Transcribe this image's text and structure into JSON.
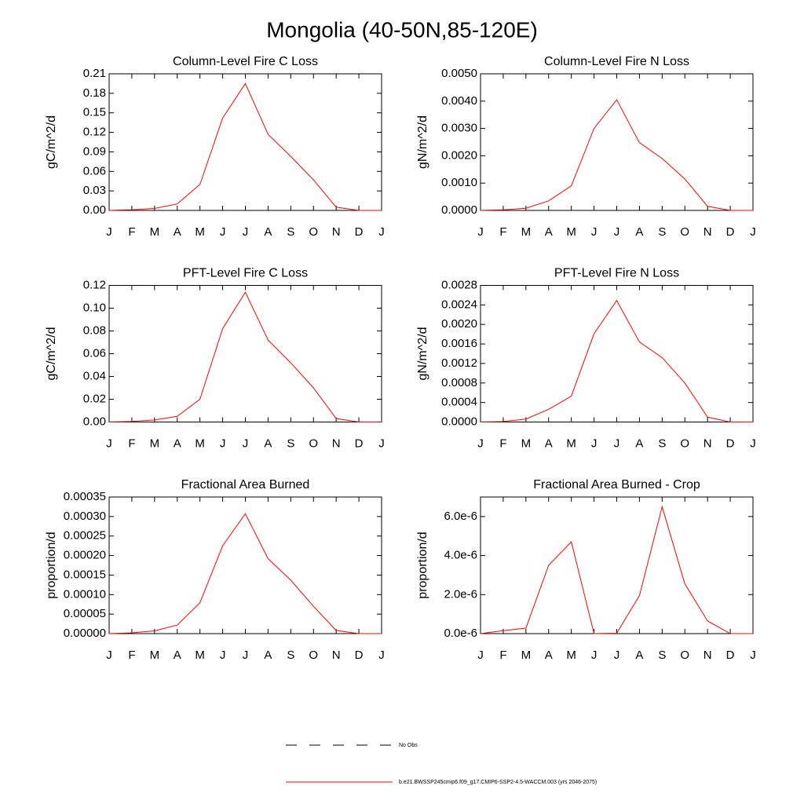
{
  "title": "Mongolia (40-50N,85-120E)",
  "legend": [
    {
      "name": "No Obs",
      "color": "#000000",
      "dash": true
    },
    {
      "name": "b.e21.BWSSP245cmip6.f09_g17.CMIP6-SSP2-4.5-WACCM.003 (yrs 2046-2075)",
      "color": "#ff0000",
      "dash": false
    }
  ],
  "chart_data": [
    {
      "type": "line",
      "title": "Column-Level Fire C Loss",
      "y_label": "gC/m^2/d",
      "categories": [
        "J",
        "F",
        "M",
        "A",
        "M",
        "J",
        "J",
        "A",
        "S",
        "O",
        "N",
        "D",
        "J"
      ],
      "values": [
        0,
        0.001,
        0.003,
        0.01,
        0.04,
        0.142,
        0.195,
        0.117,
        0.083,
        0.047,
        0.005,
        0,
        0
      ],
      "color": "#ff0000",
      "ylim": [
        0,
        0.21
      ],
      "yticks": [
        {
          "value": 0,
          "label": "0.00"
        },
        0.03,
        0.06,
        0.09,
        0.12,
        0.15,
        0.18,
        0.21
      ]
    },
    {
      "type": "line",
      "title": "Column-Level Fire N Loss",
      "y_label": "gN/m^2/d",
      "categories": [
        "J",
        "F",
        "M",
        "A",
        "M",
        "J",
        "J",
        "A",
        "S",
        "O",
        "N",
        "D",
        "J"
      ],
      "values": [
        0,
        2e-05,
        8e-05,
        0.00035,
        0.0009,
        0.003,
        0.00405,
        0.00248,
        0.0019,
        0.00115,
        0.00015,
        0,
        0
      ],
      "color": "#ff0000",
      "ylim": [
        0,
        0.005
      ],
      "yticks": [
        {
          "value": 0,
          "label": "0.0000"
        },
        {
          "value": 0.001,
          "label": "0.0010"
        },
        {
          "value": 0.002,
          "label": "0.0020"
        },
        {
          "value": 0.003,
          "label": "0.0030"
        },
        {
          "value": 0.004,
          "label": "0.0040"
        },
        {
          "value": 0.005,
          "label": "0.0050"
        }
      ]
    },
    {
      "type": "line",
      "title": "PFT-Level Fire C Loss",
      "y_label": "gC/m^2/d",
      "categories": [
        "J",
        "F",
        "M",
        "A",
        "M",
        "J",
        "J",
        "A",
        "S",
        "O",
        "N",
        "D",
        "J"
      ],
      "values": [
        0,
        0.0005,
        0.0018,
        0.005,
        0.02,
        0.082,
        0.114,
        0.072,
        0.052,
        0.03,
        0.003,
        0,
        0
      ],
      "color": "#ff0000",
      "ylim": [
        0,
        0.12
      ],
      "yticks": [
        {
          "value": 0,
          "label": "0.00"
        },
        0.02,
        0.04,
        0.06,
        0.08,
        {
          "value": 0.1,
          "label": "0.10"
        },
        0.12
      ]
    },
    {
      "type": "line",
      "title": "PFT-Level Fire N Loss",
      "y_label": "gN/m^2/d",
      "categories": [
        "J",
        "F",
        "M",
        "A",
        "M",
        "J",
        "J",
        "A",
        "S",
        "O",
        "N",
        "D",
        "J"
      ],
      "values": [
        0,
        1e-05,
        6e-05,
        0.00026,
        0.00053,
        0.00181,
        0.00249,
        0.00164,
        0.00132,
        0.0008,
        0.0001,
        0,
        0
      ],
      "color": "#ff0000",
      "ylim": [
        0,
        0.0028
      ],
      "yticks": [
        {
          "value": 0,
          "label": "0.0000"
        },
        0.0004,
        0.0008,
        {
          "value": 0.0012,
          "label": "0.0012"
        },
        0.0016,
        {
          "value": 0.002,
          "label": "0.0020"
        },
        0.0024,
        0.0028
      ]
    },
    {
      "type": "line",
      "title": "Fractional Area Burned",
      "y_label": "proportion/d",
      "categories": [
        "J",
        "F",
        "M",
        "A",
        "M",
        "J",
        "J",
        "A",
        "S",
        "O",
        "N",
        "D",
        "J"
      ],
      "values": [
        0,
        2e-06,
        7e-06,
        2.2e-05,
        7.9e-05,
        0.000225,
        0.000307,
        0.000192,
        0.000137,
        7e-05,
        8e-06,
        0,
        0
      ],
      "color": "#ff0000",
      "ylim": [
        0,
        0.00035
      ],
      "yticks": [
        {
          "value": 0,
          "label": "0.00000"
        },
        {
          "value": 5e-05,
          "label": "0.00005"
        },
        {
          "value": 0.0001,
          "label": "0.00010"
        },
        {
          "value": 0.00015,
          "label": "0.00015"
        },
        {
          "value": 0.0002,
          "label": "0.00020"
        },
        {
          "value": 0.00025,
          "label": "0.00025"
        },
        {
          "value": 0.0003,
          "label": "0.00030"
        },
        {
          "value": 0.00035,
          "label": "0.00035"
        }
      ]
    },
    {
      "type": "line",
      "title": "Fractional Area Burned - Crop",
      "y_label": "proportion/d",
      "categories": [
        "J",
        "F",
        "M",
        "A",
        "M",
        "J",
        "J",
        "A",
        "S",
        "O",
        "N",
        "D",
        "J"
      ],
      "values": [
        0,
        1.5e-07,
        2.8e-07,
        3.5e-06,
        4.7e-06,
        0,
        2e-08,
        1.95e-06,
        6.5e-06,
        2.55e-06,
        6.5e-07,
        0,
        0
      ],
      "color": "#ff0000",
      "ylim": [
        0,
        7e-06
      ],
      "yticks": [
        {
          "value": 0,
          "label": "0.0e-6"
        },
        {
          "value": 2e-06,
          "label": "2.0e-6"
        },
        {
          "value": 4e-06,
          "label": "4.0e-6"
        },
        {
          "value": 6e-06,
          "label": "6.0e-6"
        }
      ]
    }
  ]
}
